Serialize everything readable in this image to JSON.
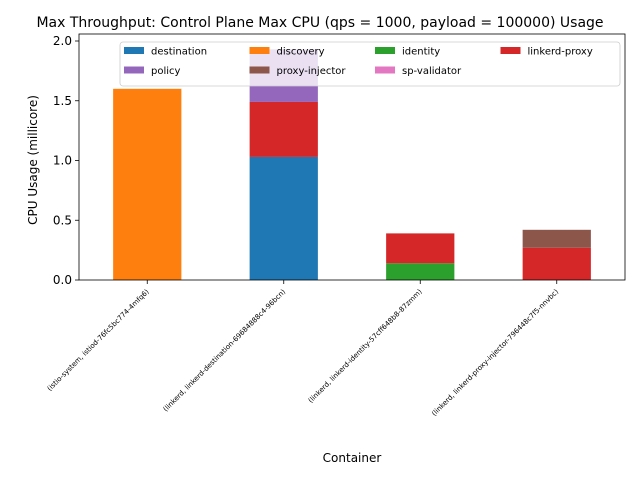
{
  "chart_data": {
    "type": "bar",
    "stacked": true,
    "title": "Max Throughput: Control Plane Max CPU (qps = 1000, payload = 100000) Usage",
    "xlabel": "Container",
    "ylabel": "CPU Usage (millicore)",
    "ylim": [
      0,
      2.0
    ],
    "yticks": [
      "0.0",
      "0.5",
      "1.0",
      "1.5",
      "2.0"
    ],
    "grid": false,
    "legend_position": "top-right",
    "categories": [
      "(istio-system, istiod-76fc5bc774-4mfq6)",
      "(linkerd, linkerd-destination-69684888c4-96bcn)",
      "(linkerd, linkerd-identity-57cff648b8-87zmm)",
      "(linkerd, linkerd-proxy-injector-796448c7f5-nnvbc)"
    ],
    "series": [
      {
        "name": "destination",
        "color": "#1f77b4",
        "values": [
          0,
          1.03,
          0,
          0
        ]
      },
      {
        "name": "discovery",
        "color": "#ff7f0e",
        "values": [
          1.6,
          0,
          0,
          0
        ]
      },
      {
        "name": "identity",
        "color": "#2ca02c",
        "values": [
          0,
          0,
          0.14,
          0
        ]
      },
      {
        "name": "linkerd-proxy",
        "color": "#d62728",
        "values": [
          0,
          0.46,
          0.25,
          0.27
        ]
      },
      {
        "name": "policy",
        "color": "#9467bd",
        "values": [
          0,
          0.44,
          0,
          0
        ]
      },
      {
        "name": "proxy-injector",
        "color": "#8c564b",
        "values": [
          0,
          0,
          0,
          0.15
        ]
      },
      {
        "name": "sp-validator",
        "color": "#e377c2",
        "values": [
          0,
          0,
          0,
          0
        ]
      }
    ]
  }
}
